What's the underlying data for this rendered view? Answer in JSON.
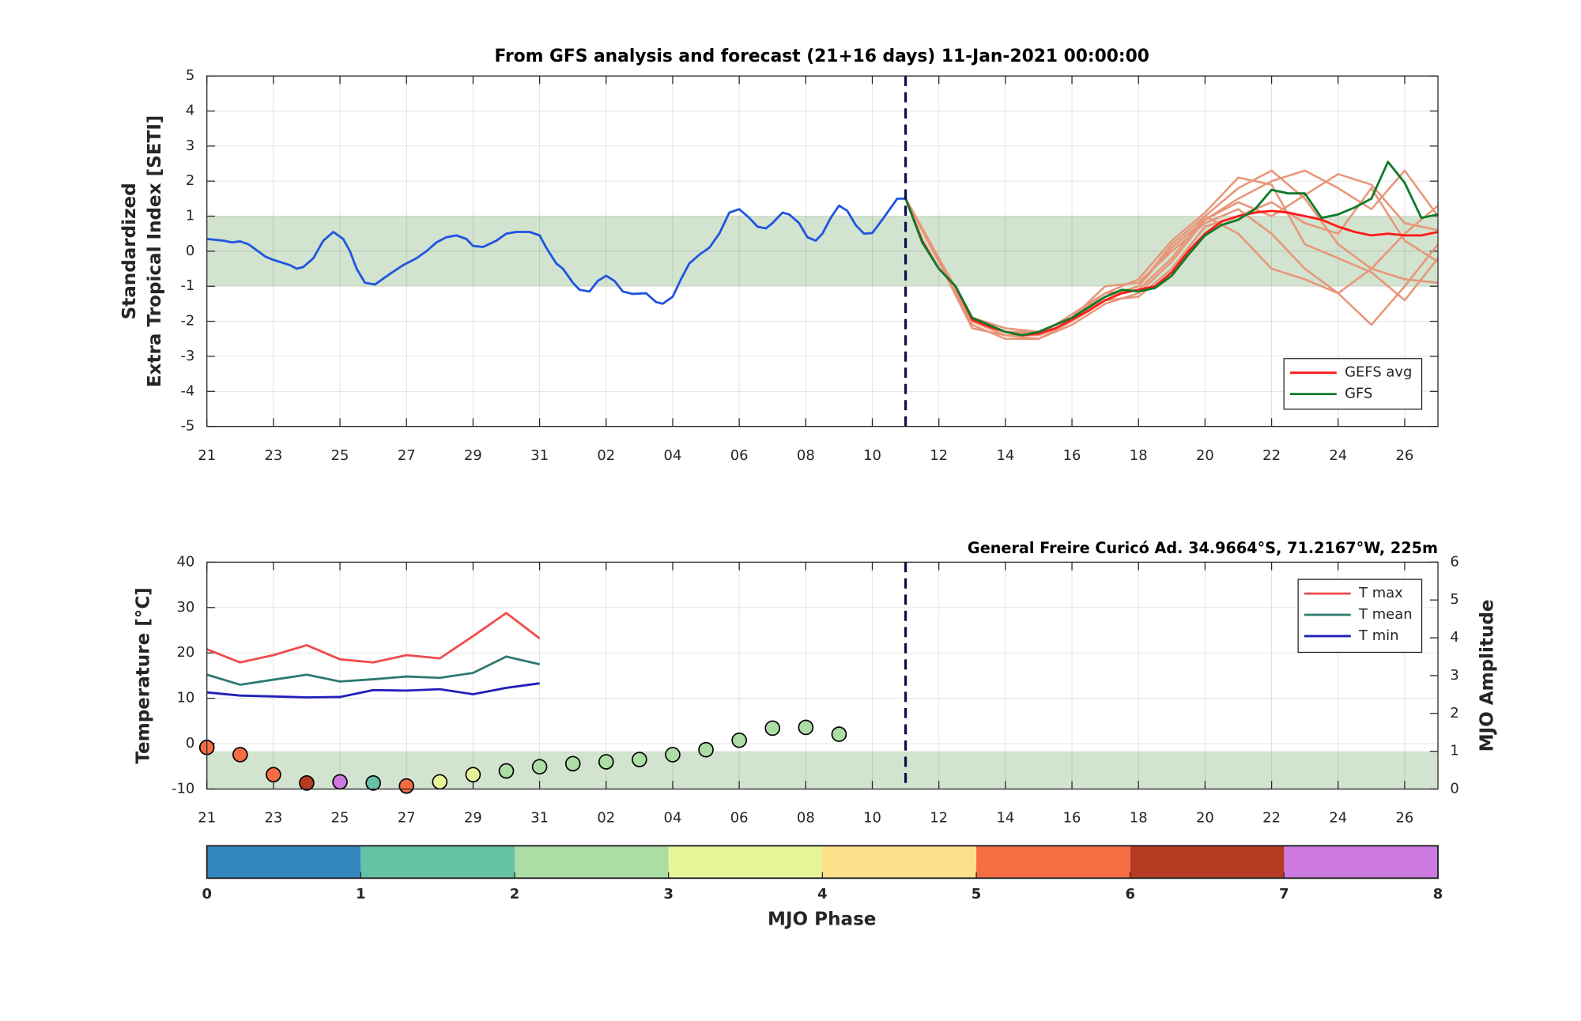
{
  "chart_data": [
    {
      "type": "line",
      "title": "From GFS analysis and forecast (21+16 days) 11-Jan-2021 00:00:00",
      "ylabel": [
        "Standardized",
        "Extra Tropical Index [SETI]"
      ],
      "xlim": [
        0,
        37
      ],
      "xticks": [
        {
          "value": 0,
          "label": "21"
        },
        {
          "value": 2,
          "label": "23"
        },
        {
          "value": 4,
          "label": "25"
        },
        {
          "value": 6,
          "label": "27"
        },
        {
          "value": 8,
          "label": "29"
        },
        {
          "value": 10,
          "label": "31"
        },
        {
          "value": 12,
          "label": "02"
        },
        {
          "value": 14,
          "label": "04"
        },
        {
          "value": 16,
          "label": "06"
        },
        {
          "value": 18,
          "label": "08"
        },
        {
          "value": 20,
          "label": "10"
        },
        {
          "value": 22,
          "label": "12"
        },
        {
          "value": 24,
          "label": "14"
        },
        {
          "value": 26,
          "label": "16"
        },
        {
          "value": 28,
          "label": "18"
        },
        {
          "value": 30,
          "label": "20"
        },
        {
          "value": 32,
          "label": "22"
        },
        {
          "value": 34,
          "label": "24"
        },
        {
          "value": 36,
          "label": "26"
        }
      ],
      "ylim": [
        -5,
        5
      ],
      "yticks": [
        -5,
        -4,
        -3,
        -2,
        -1,
        0,
        1,
        2,
        3,
        4,
        5
      ],
      "grid": true,
      "band": [
        -1,
        1
      ],
      "band_color": "#d2e3cf",
      "forecast_start": 21,
      "legend": "lower right",
      "analysis": {
        "color": "#1f55e0",
        "x": [
          0,
          0.5,
          0.75,
          1,
          1.25,
          1.75,
          2,
          2.5,
          2.7,
          2.9,
          3.2,
          3.5,
          3.8,
          4.1,
          4.3,
          4.5,
          4.75,
          5.05,
          5.5,
          5.9,
          6.3,
          6.6,
          6.9,
          7.2,
          7.5,
          7.8,
          8,
          8.3,
          8.7,
          9,
          9.3,
          9.7,
          10,
          10.2,
          10.5,
          10.7,
          11,
          11.2,
          11.5,
          11.75,
          12,
          12.25,
          12.5,
          12.8,
          13.2,
          13.5,
          13.7,
          14,
          14.25,
          14.5,
          14.8,
          15.1,
          15.4,
          15.7,
          16,
          16.3,
          16.55,
          16.8,
          17,
          17.3,
          17.5,
          17.8,
          18.05,
          18.3,
          18.5,
          18.75,
          19,
          19.25,
          19.5,
          19.75,
          20,
          20.3,
          20.6,
          20.75,
          21
        ],
        "values": [
          0.35,
          0.3,
          0.25,
          0.28,
          0.2,
          -0.15,
          -0.25,
          -0.4,
          -0.5,
          -0.45,
          -0.2,
          0.3,
          0.55,
          0.35,
          0,
          -0.5,
          -0.9,
          -0.95,
          -0.65,
          -0.4,
          -0.2,
          0,
          0.25,
          0.4,
          0.45,
          0.35,
          0.15,
          0.12,
          0.3,
          0.5,
          0.55,
          0.55,
          0.45,
          0.1,
          -0.35,
          -0.5,
          -0.9,
          -1.1,
          -1.15,
          -0.85,
          -0.7,
          -0.85,
          -1.15,
          -1.22,
          -1.2,
          -1.45,
          -1.5,
          -1.3,
          -0.8,
          -0.35,
          -0.1,
          0.1,
          0.5,
          1.1,
          1.2,
          0.95,
          0.7,
          0.65,
          0.8,
          1.1,
          1.05,
          0.8,
          0.4,
          0.3,
          0.5,
          0.95,
          1.3,
          1.15,
          0.75,
          0.5,
          0.52,
          0.9,
          1.3,
          1.5,
          1.5
        ]
      },
      "ensemble_color": "#e8967a",
      "members_x": [
        21,
        22,
        23,
        24,
        25,
        26,
        27,
        28,
        29,
        30,
        31,
        32,
        33,
        34,
        35,
        36,
        37
      ],
      "ensemble": [
        {
          "values": [
            1.5,
            -0.3,
            -2.0,
            -2.4,
            -2.4,
            -2.0,
            -1.3,
            -1.0,
            0.2,
            1.0,
            1.8,
            2.3,
            1.5,
            0.2,
            -0.5,
            -0.8,
            -0.9
          ]
        },
        {
          "values": [
            1.5,
            -0.2,
            -1.9,
            -2.3,
            -2.3,
            -1.9,
            -1.0,
            -0.9,
            0.0,
            0.8,
            1.2,
            0.5,
            -0.5,
            -1.2,
            -2.1,
            -1.0,
            0.2
          ]
        },
        {
          "values": [
            1.5,
            -0.2,
            -2.1,
            -2.5,
            -2.5,
            -2.1,
            -1.5,
            -1.2,
            -0.3,
            0.9,
            1.5,
            2.0,
            2.3,
            1.8,
            1.2,
            2.3,
            1.0
          ]
        },
        {
          "values": [
            1.5,
            -0.2,
            -2.0,
            -2.3,
            -2.4,
            -1.8,
            -1.2,
            -1.1,
            -0.2,
            1.0,
            0.5,
            -0.5,
            -0.8,
            -1.2,
            -0.5,
            0.5,
            1.3
          ]
        },
        {
          "values": [
            1.5,
            -0.3,
            -2.2,
            -2.4,
            -2.5,
            -2.0,
            -1.4,
            -1.3,
            -0.5,
            0.7,
            1.0,
            1.4,
            0.8,
            0.5,
            1.8,
            0.3,
            -0.3
          ]
        },
        {
          "values": [
            1.5,
            -0.2,
            -1.9,
            -2.2,
            -2.3,
            -1.9,
            -1.2,
            -0.8,
            0.3,
            1.1,
            2.1,
            1.9,
            0.2,
            -0.2,
            -0.6,
            -1.4,
            -0.2
          ]
        },
        {
          "values": [
            1.5,
            -0.3,
            -2.0,
            -2.4,
            -2.4,
            -2.0,
            -1.3,
            -1.0,
            0.1,
            0.9,
            1.4,
            1.0,
            1.6,
            2.2,
            1.9,
            0.8,
            0.6
          ]
        }
      ],
      "forecast_x": [
        21,
        21.5,
        22,
        22.5,
        23,
        23.5,
        24,
        24.5,
        25,
        25.5,
        26,
        26.5,
        27,
        27.5,
        28,
        28.5,
        29,
        29.5,
        30,
        30.5,
        31,
        31.5,
        32,
        32.5,
        33,
        33.5,
        34,
        34.5,
        35,
        35.5,
        36,
        36.5,
        37
      ],
      "series": [
        {
          "name": "GEFS avg",
          "color": "#ff1a1a",
          "values": [
            1.5,
            0.3,
            -0.5,
            -1.0,
            -1.95,
            -2.15,
            -2.3,
            -2.4,
            -2.35,
            -2.2,
            -1.95,
            -1.7,
            -1.4,
            -1.2,
            -1.1,
            -1.0,
            -0.6,
            0.0,
            0.5,
            0.85,
            1.0,
            1.1,
            1.15,
            1.1,
            1.0,
            0.9,
            0.7,
            0.55,
            0.45,
            0.5,
            0.45,
            0.45,
            0.55
          ]
        },
        {
          "name": "GFS",
          "color": "#107a2a",
          "values": [
            1.5,
            0.25,
            -0.5,
            -1.0,
            -1.9,
            -2.1,
            -2.3,
            -2.4,
            -2.3,
            -2.1,
            -1.9,
            -1.6,
            -1.3,
            -1.1,
            -1.15,
            -1.05,
            -0.7,
            -0.1,
            0.45,
            0.75,
            0.9,
            1.2,
            1.75,
            1.65,
            1.65,
            0.95,
            1.05,
            1.25,
            1.5,
            2.55,
            1.95,
            0.95,
            1.05
          ]
        }
      ]
    },
    {
      "type": "line",
      "title": "General Freire Curicó Ad. 34.9664°S, 71.2167°W, 225m",
      "ylabel": "Temperature [°C]",
      "y2label": "MJO Amplitude",
      "xlim": [
        0,
        37
      ],
      "xticks": [
        {
          "value": 0,
          "label": "21"
        },
        {
          "value": 2,
          "label": "23"
        },
        {
          "value": 4,
          "label": "25"
        },
        {
          "value": 6,
          "label": "27"
        },
        {
          "value": 8,
          "label": "29"
        },
        {
          "value": 10,
          "label": "31"
        },
        {
          "value": 12,
          "label": "02"
        },
        {
          "value": 14,
          "label": "04"
        },
        {
          "value": 16,
          "label": "06"
        },
        {
          "value": 18,
          "label": "08"
        },
        {
          "value": 20,
          "label": "10"
        },
        {
          "value": 22,
          "label": "12"
        },
        {
          "value": 24,
          "label": "14"
        },
        {
          "value": 26,
          "label": "16"
        },
        {
          "value": 28,
          "label": "18"
        },
        {
          "value": 30,
          "label": "20"
        },
        {
          "value": 32,
          "label": "22"
        },
        {
          "value": 34,
          "label": "24"
        },
        {
          "value": 36,
          "label": "26"
        }
      ],
      "ylim": [
        -10,
        40
      ],
      "yticks": [
        -10,
        0,
        10,
        20,
        30,
        40
      ],
      "y2lim": [
        0,
        6
      ],
      "y2ticks": [
        0,
        1,
        2,
        3,
        4,
        5,
        6
      ],
      "grid": true,
      "band": [
        0,
        1
      ],
      "band_axis": "y2",
      "band_color": "#d2e3cf",
      "forecast_start": 21,
      "legend": "upper right",
      "x": [
        0,
        1,
        2,
        3,
        4,
        5,
        6,
        7,
        8,
        9,
        10
      ],
      "series": [
        {
          "name": "T max",
          "color": "#f24b4b",
          "values": [
            20.8,
            17.9,
            19.5,
            21.7,
            18.6,
            17.9,
            19.5,
            18.8,
            23.7,
            28.8,
            23.2
          ]
        },
        {
          "name": "T mean",
          "color": "#2e7a72",
          "values": [
            15.2,
            13.0,
            14.1,
            15.2,
            13.7,
            14.2,
            14.8,
            14.5,
            15.6,
            19.2,
            17.5
          ]
        },
        {
          "name": "T min",
          "color": "#2020bb",
          "values": [
            11.3,
            10.6,
            10.4,
            10.2,
            10.3,
            11.8,
            11.7,
            12.0,
            10.9,
            12.3,
            13.3
          ]
        }
      ],
      "mjo": {
        "axis": "y2",
        "x": [
          0,
          1,
          2,
          3,
          4,
          5,
          6,
          7,
          8,
          9,
          10,
          11,
          12,
          13,
          14,
          15,
          16,
          17,
          18,
          19
        ],
        "values": [
          1.1,
          0.91,
          0.38,
          0.16,
          0.19,
          0.16,
          0.08,
          0.19,
          0.38,
          0.48,
          0.59,
          0.67,
          0.72,
          0.78,
          0.91,
          1.04,
          1.29,
          1.61,
          1.63,
          1.45
        ],
        "phase": [
          5,
          5,
          5,
          6,
          7,
          1,
          5,
          3,
          3,
          2,
          2,
          2,
          2,
          2,
          2,
          2,
          2,
          2,
          2,
          2
        ]
      }
    },
    {
      "type": "colorbar",
      "label": "MJO Phase",
      "lim": [
        0,
        8
      ],
      "ticks": [
        0,
        1,
        2,
        3,
        4,
        5,
        6,
        7,
        8
      ],
      "colors": [
        "#3288bd",
        "#66c2a5",
        "#abdda4",
        "#e6f598",
        "#fee08b",
        "#f46d43",
        "#b73a22",
        "#cc7ae0"
      ]
    }
  ]
}
